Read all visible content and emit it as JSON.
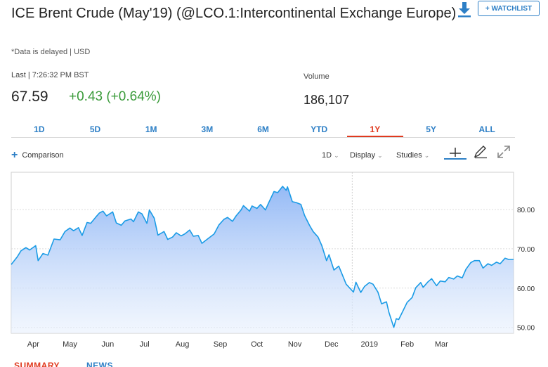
{
  "header": {
    "title": "ICE Brent Crude (May'19) (@LCO.1:Intercontinental Exchange Europe)",
    "watchlist_label": "+ WATCHLIST",
    "delayed_note": "*Data is delayed | USD"
  },
  "quote": {
    "last_label": "Last | 7:26:32 PM BST",
    "price": "67.59",
    "change": "+0.43 (+0.64%)",
    "volume_label": "Volume",
    "volume": "186,107"
  },
  "range_tabs": [
    "1D",
    "5D",
    "1M",
    "3M",
    "6M",
    "YTD",
    "1Y",
    "5Y",
    "ALL"
  ],
  "active_range": "1Y",
  "toolbar": {
    "comparison_label": "Comparison",
    "interval_label": "1D",
    "display_label": "Display",
    "studies_label": "Studies"
  },
  "bottom_tabs": {
    "summary": "SUMMARY",
    "news": "NEWS"
  },
  "colors": {
    "accent_blue": "#2d7fc6",
    "active_red": "#e03a1f",
    "positive_green": "#3a9b3a",
    "line": "#1a9be6"
  },
  "chart_data": {
    "type": "area",
    "title": "",
    "xlabel": "",
    "ylabel": "",
    "ylim": [
      48.5,
      89.5
    ],
    "yticks": [
      "50.00",
      "60.00",
      "70.00",
      "80.00"
    ],
    "x_tick_labels": [
      "Apr",
      "May",
      "Jun",
      "Jul",
      "Aug",
      "Sep",
      "Oct",
      "Nov",
      "Dec",
      "2019",
      "Feb",
      "Mar"
    ],
    "grid": true,
    "y_axis_position": "right",
    "series": [
      {
        "points": [
          [
            "2018-03-28",
            66.0
          ],
          [
            "2018-04-02",
            68.0
          ],
          [
            "2018-04-05",
            69.5
          ],
          [
            "2018-04-09",
            70.3
          ],
          [
            "2018-04-12",
            69.7
          ],
          [
            "2018-04-17",
            70.8
          ],
          [
            "2018-04-19",
            67.0
          ],
          [
            "2018-04-23",
            68.8
          ],
          [
            "2018-04-27",
            68.4
          ],
          [
            "2018-05-02",
            72.5
          ],
          [
            "2018-05-07",
            72.3
          ],
          [
            "2018-05-11",
            74.4
          ],
          [
            "2018-05-15",
            75.3
          ],
          [
            "2018-05-18",
            74.6
          ],
          [
            "2018-05-22",
            75.4
          ],
          [
            "2018-05-25",
            73.4
          ],
          [
            "2018-05-29",
            76.7
          ],
          [
            "2018-06-01",
            76.5
          ],
          [
            "2018-06-05",
            78.0
          ],
          [
            "2018-06-08",
            79.1
          ],
          [
            "2018-06-11",
            79.6
          ],
          [
            "2018-06-14",
            78.4
          ],
          [
            "2018-06-19",
            79.4
          ],
          [
            "2018-06-22",
            76.6
          ],
          [
            "2018-06-26",
            76.0
          ],
          [
            "2018-06-29",
            77.1
          ],
          [
            "2018-07-04",
            77.6
          ],
          [
            "2018-07-06",
            76.9
          ],
          [
            "2018-07-10",
            79.4
          ],
          [
            "2018-07-13",
            78.9
          ],
          [
            "2018-07-17",
            76.5
          ],
          [
            "2018-07-19",
            79.9
          ],
          [
            "2018-07-23",
            77.8
          ],
          [
            "2018-07-26",
            73.5
          ],
          [
            "2018-07-31",
            74.4
          ],
          [
            "2018-08-03",
            72.4
          ],
          [
            "2018-08-07",
            73.0
          ],
          [
            "2018-08-10",
            74.1
          ],
          [
            "2018-08-14",
            73.3
          ],
          [
            "2018-08-17",
            73.8
          ],
          [
            "2018-08-21",
            74.8
          ],
          [
            "2018-08-24",
            73.2
          ],
          [
            "2018-08-28",
            73.4
          ],
          [
            "2018-08-31",
            71.4
          ],
          [
            "2018-09-05",
            72.6
          ],
          [
            "2018-09-10",
            73.8
          ],
          [
            "2018-09-14",
            76.1
          ],
          [
            "2018-09-18",
            77.5
          ],
          [
            "2018-09-21",
            78.0
          ],
          [
            "2018-09-25",
            77.0
          ],
          [
            "2018-09-28",
            78.4
          ],
          [
            "2018-10-02",
            79.9
          ],
          [
            "2018-10-04",
            81.0
          ],
          [
            "2018-10-09",
            79.6
          ],
          [
            "2018-10-11",
            80.9
          ],
          [
            "2018-10-15",
            80.3
          ],
          [
            "2018-10-18",
            81.3
          ],
          [
            "2018-10-22",
            79.9
          ],
          [
            "2018-10-25",
            82.0
          ],
          [
            "2018-10-29",
            84.6
          ],
          [
            "2018-11-01",
            84.3
          ],
          [
            "2018-11-05",
            85.9
          ],
          [
            "2018-11-08",
            84.9
          ],
          [
            "2018-11-09",
            85.8
          ],
          [
            "2018-11-13",
            82.0
          ],
          [
            "2018-11-16",
            81.8
          ],
          [
            "2018-11-20",
            81.3
          ],
          [
            "2018-11-23",
            78.5
          ],
          [
            "2018-11-27",
            76.0
          ],
          [
            "2018-11-30",
            74.4
          ],
          [
            "2018-12-04",
            73.0
          ],
          [
            "2018-12-07",
            70.9
          ],
          [
            "2018-12-11",
            67.0
          ],
          [
            "2018-12-13",
            68.5
          ],
          [
            "2018-12-17",
            64.6
          ],
          [
            "2018-12-21",
            65.6
          ],
          [
            "2018-12-27",
            61.0
          ],
          [
            "2019-01-02",
            59.0
          ],
          [
            "2019-01-04",
            61.5
          ],
          [
            "2019-01-08",
            58.9
          ],
          [
            "2019-01-11",
            60.4
          ],
          [
            "2019-01-15",
            61.4
          ],
          [
            "2019-01-18",
            61.0
          ],
          [
            "2019-01-22",
            59.0
          ],
          [
            "2019-01-25",
            56.0
          ],
          [
            "2019-01-29",
            56.5
          ],
          [
            "2019-01-31",
            53.8
          ],
          [
            "2019-02-04",
            50.0
          ],
          [
            "2019-02-06",
            52.2
          ],
          [
            "2019-02-08",
            52.0
          ],
          [
            "2019-02-12",
            54.5
          ],
          [
            "2019-02-15",
            56.4
          ],
          [
            "2019-02-19",
            57.6
          ],
          [
            "2019-02-22",
            60.1
          ],
          [
            "2019-02-26",
            61.4
          ],
          [
            "2019-02-28",
            60.2
          ],
          [
            "2019-03-04",
            61.6
          ],
          [
            "2019-03-07",
            62.4
          ],
          [
            "2019-03-11",
            60.6
          ],
          [
            "2019-03-14",
            61.8
          ],
          [
            "2019-03-18",
            61.6
          ],
          [
            "2019-03-21",
            62.7
          ],
          [
            "2019-03-25",
            62.3
          ],
          [
            "2019-03-28",
            63.1
          ],
          [
            "2019-04-01",
            62.6
          ],
          [
            "2019-04-04",
            64.8
          ],
          [
            "2019-04-08",
            66.5
          ],
          [
            "2019-04-11",
            67.0
          ],
          [
            "2019-04-15",
            67.0
          ],
          [
            "2019-04-18",
            65.1
          ],
          [
            "2019-04-22",
            66.2
          ],
          [
            "2019-04-25",
            65.8
          ],
          [
            "2019-04-29",
            66.6
          ],
          [
            "2019-05-02",
            66.2
          ],
          [
            "2019-05-06",
            67.6
          ],
          [
            "2019-05-09",
            67.3
          ],
          [
            "2019-05-13",
            67.3
          ]
        ]
      }
    ]
  }
}
